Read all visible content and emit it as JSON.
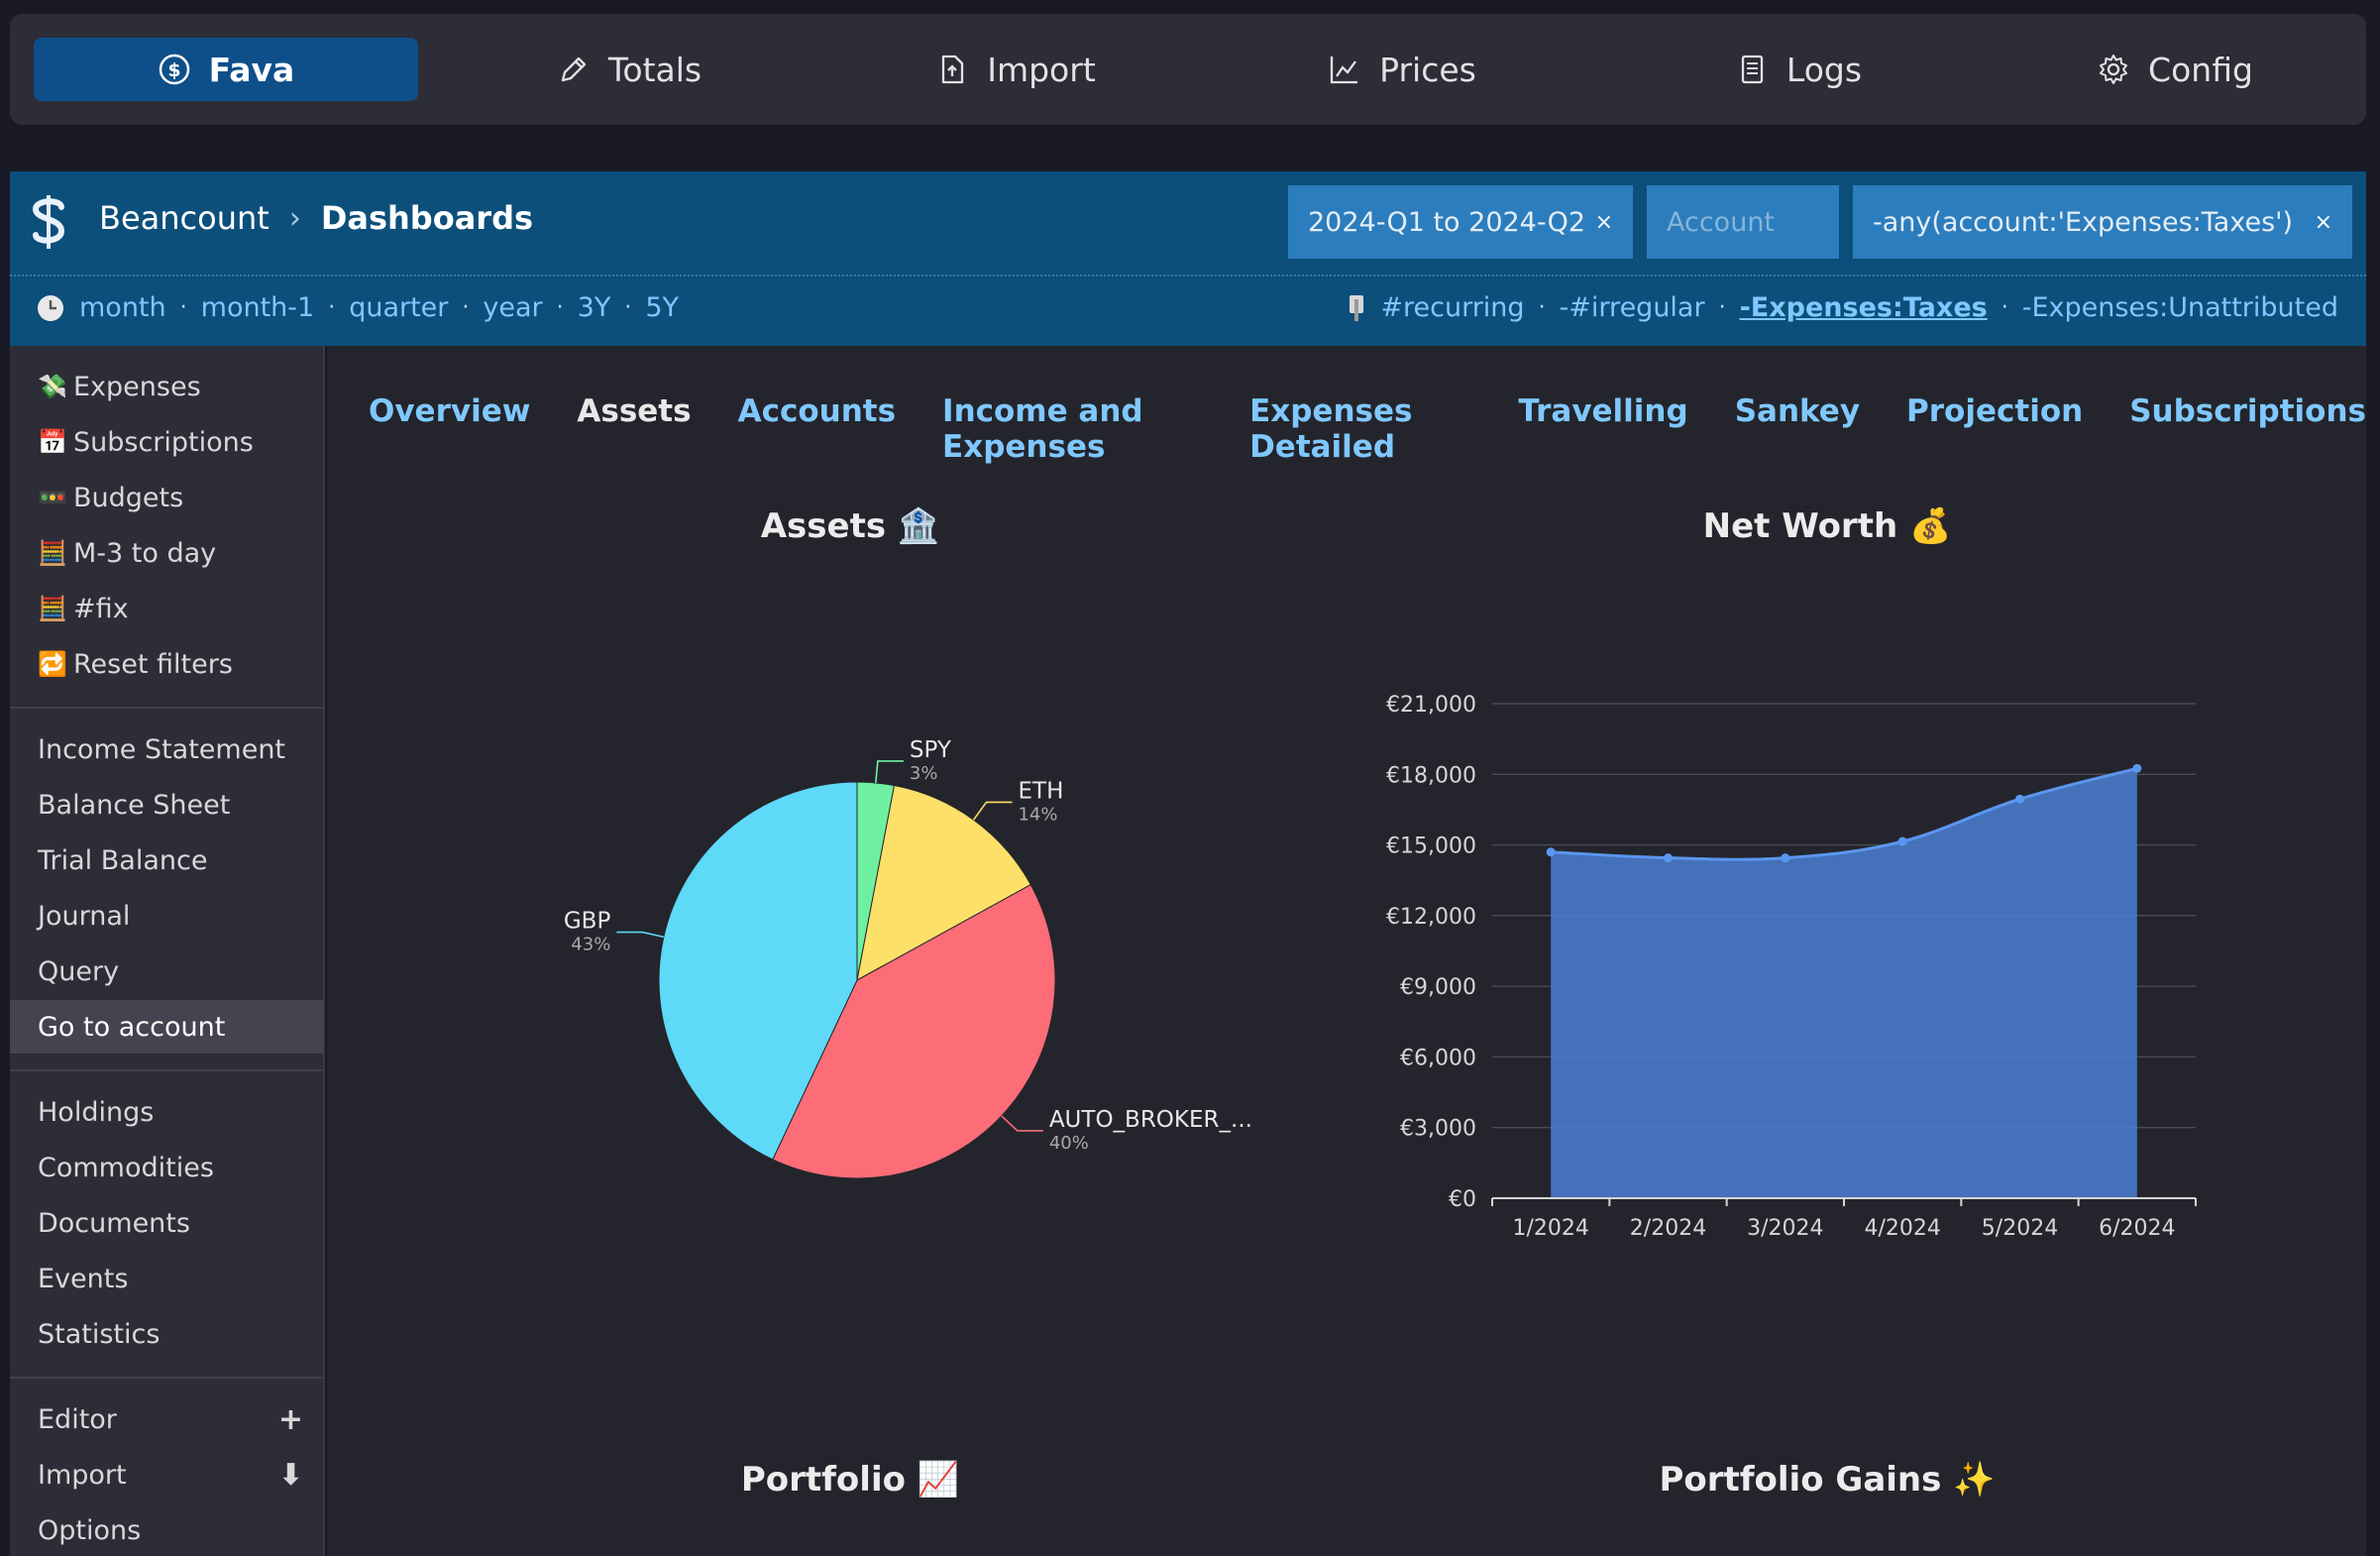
{
  "app_tabs": [
    {
      "label": "Fava",
      "icon": "dollar-coin-icon"
    },
    {
      "label": "Totals",
      "icon": "pencil-icon"
    },
    {
      "label": "Import",
      "icon": "file-upload-icon"
    },
    {
      "label": "Prices",
      "icon": "line-chart-icon"
    },
    {
      "label": "Logs",
      "icon": "document-lines-icon"
    },
    {
      "label": "Config",
      "icon": "gear-icon"
    }
  ],
  "header": {
    "breadcrumb": [
      "Beancount",
      "Dashboards"
    ],
    "time_filter": {
      "value": "2024-Q1 to 2024-Q2",
      "clear": "×"
    },
    "account_filter": {
      "placeholder": "Account"
    },
    "query_filter": {
      "value": "-any(account:'Expenses:Taxes')",
      "clear": "×"
    },
    "time_links": [
      "month",
      "month-1",
      "quarter",
      "year",
      "3Y",
      "5Y"
    ],
    "tag_links": [
      "#recurring",
      "-#irregular",
      "-Expenses:Taxes",
      "-Expenses:Unattributed"
    ],
    "dot": "·"
  },
  "sidebar": {
    "quick_links": [
      {
        "emoji": "💸",
        "label": "Expenses"
      },
      {
        "emoji": "📅",
        "label": "Subscriptions"
      },
      {
        "emoji": "🚥",
        "label": "Budgets"
      },
      {
        "emoji": "🧮",
        "label": "M-3 to day"
      },
      {
        "emoji": "🧮",
        "label": "#fix"
      },
      {
        "emoji": "🔁",
        "label": "Reset filters"
      }
    ],
    "reports": [
      "Income Statement",
      "Balance Sheet",
      "Trial Balance",
      "Journal",
      "Query",
      "Go to account"
    ],
    "more": [
      "Holdings",
      "Commodities",
      "Documents",
      "Events",
      "Statistics"
    ],
    "tools": [
      {
        "label": "Editor",
        "action": "+"
      },
      {
        "label": "Import",
        "action": "⬇"
      },
      {
        "label": "Options",
        "action": ""
      }
    ]
  },
  "dashboard_tabs": [
    "Overview",
    "Assets",
    "Accounts",
    "Income and Expenses",
    "Expenses Detailed",
    "Travelling",
    "Sankey",
    "Projection",
    "Subscriptions"
  ],
  "panels": {
    "assets_title": "Assets 🏦",
    "networth_title": "Net Worth 💰",
    "portfolio_title": "Portfolio 📈",
    "gains_title": "Portfolio Gains ✨"
  },
  "colors": {
    "accent": "#0e4f8a",
    "header": "#0c4f7b",
    "link": "#7fc8ff",
    "area": "#4a7fd4"
  },
  "chart_data": [
    {
      "type": "pie",
      "title": "Assets 🏦",
      "slices": [
        {
          "label": "SPY",
          "pct": "3%",
          "value": 3,
          "color": "#6ff0a0"
        },
        {
          "label": "ETH",
          "pct": "14%",
          "value": 14,
          "color": "#fde069"
        },
        {
          "label": "AUTO_BROKER_...",
          "pct": "40%",
          "value": 40,
          "color": "#fd6d77"
        },
        {
          "label": "GBP",
          "pct": "43%",
          "value": 43,
          "color": "#5ed9f8"
        }
      ]
    },
    {
      "type": "area",
      "title": "Net Worth 💰",
      "categories": [
        "1/2024",
        "2/2024",
        "3/2024",
        "4/2024",
        "5/2024",
        "6/2024"
      ],
      "values": [
        14700,
        14450,
        14450,
        15150,
        16950,
        18250
      ],
      "ylim": [
        0,
        21000
      ],
      "yticks": [
        "€0",
        "€3,000",
        "€6,000",
        "€9,000",
        "€12,000",
        "€15,000",
        "€18,000",
        "€21,000"
      ],
      "grid": true
    }
  ]
}
